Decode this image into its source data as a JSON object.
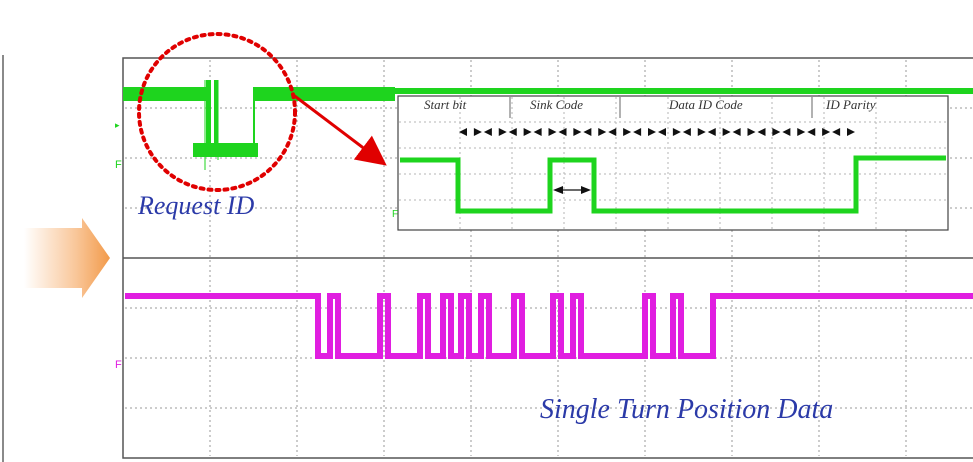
{
  "annotations": {
    "request_id": "Request ID",
    "position_data": "Single Turn Position Data"
  },
  "inset": {
    "fields": [
      "Start bit",
      "Sink Code",
      "Data ID Code",
      "ID Parity"
    ]
  },
  "channel_markers": {
    "ch1": "F",
    "ch2": "F",
    "inset": "F"
  },
  "colors": {
    "request_trace": "#1ed41e",
    "position_trace": "#e01ee0",
    "highlight": "#e00000",
    "label": "#2b3aa8",
    "grid": "#9a9a9a",
    "arrow": "#f5a15a"
  },
  "icons": {
    "side_arrow": "right-arrow-icon",
    "highlight": "dotted-circle-icon",
    "pointer": "red-pointer-arrow-icon"
  }
}
